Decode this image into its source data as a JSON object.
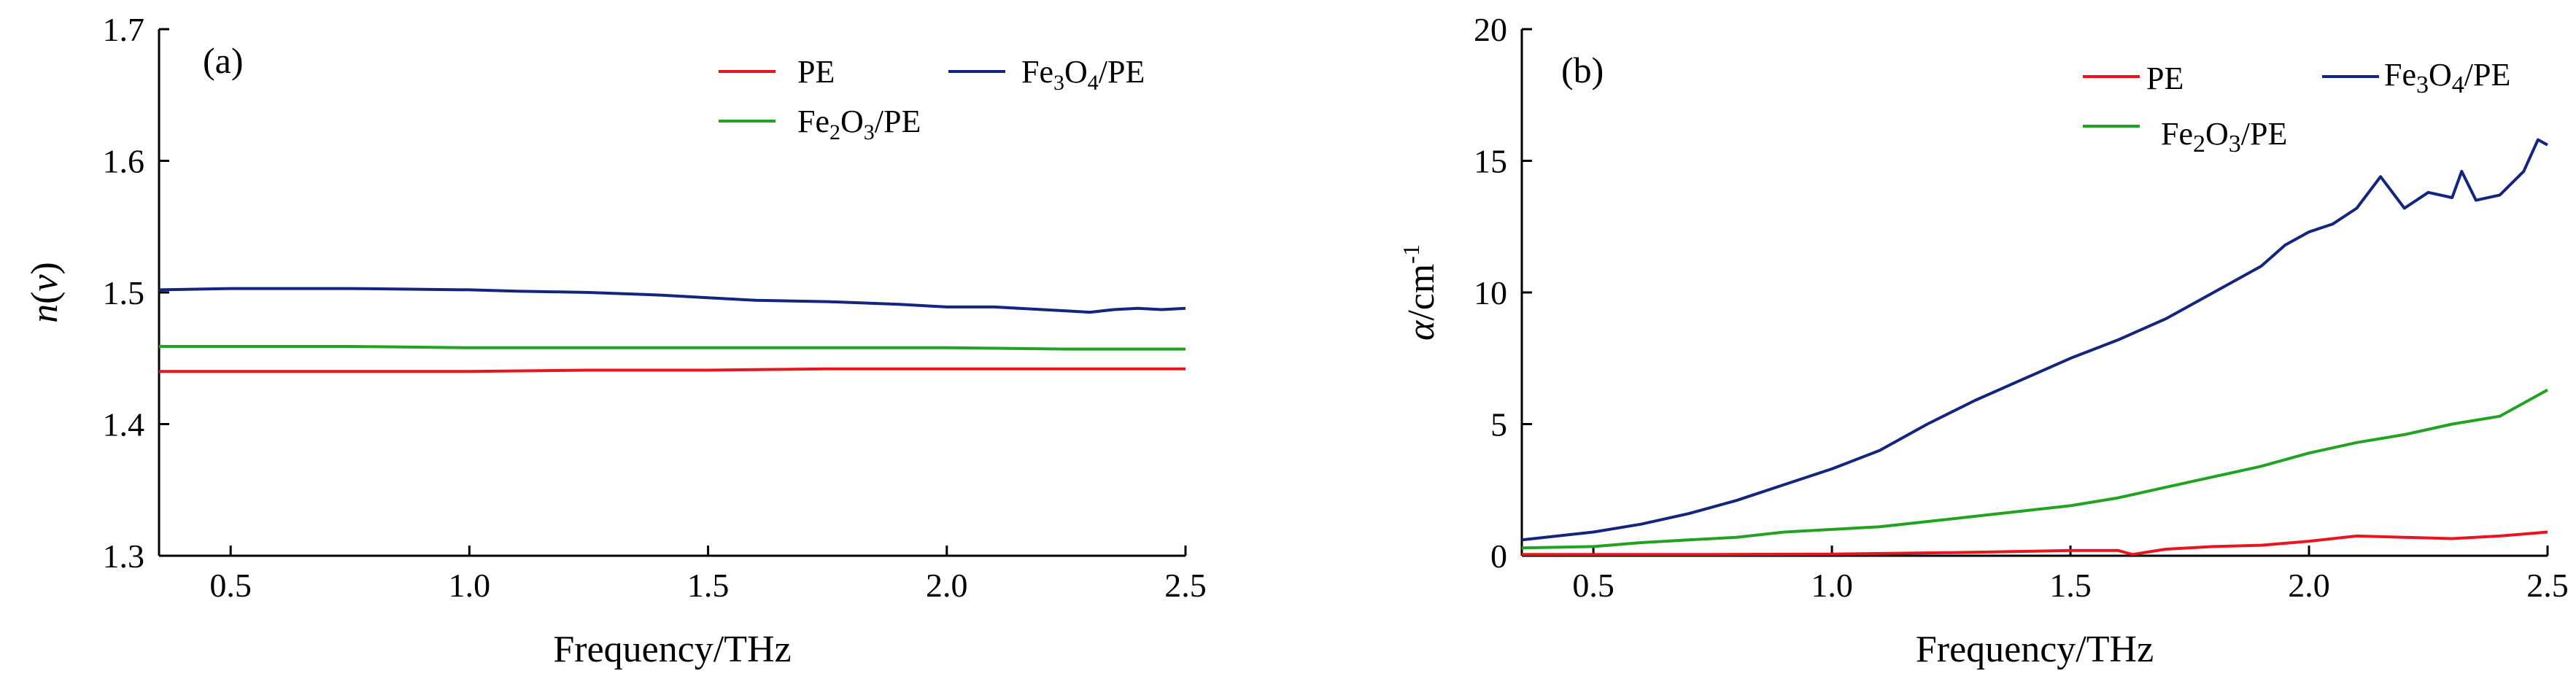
{
  "chart_data": [
    {
      "type": "line",
      "panel_label": "(a)",
      "xlabel": "Frequency/THz",
      "ylabel_main": "n",
      "ylabel_paren_open": "(",
      "ylabel_var": "ν",
      "ylabel_paren_close": ")",
      "xlim": [
        0.35,
        2.5
      ],
      "ylim": [
        1.3,
        1.7
      ],
      "xticks": [
        0.5,
        1.0,
        1.5,
        2.0,
        2.5
      ],
      "xtick_labels": [
        "0.5",
        "1.0",
        "1.5",
        "2.0",
        "2.5"
      ],
      "yticks": [
        1.3,
        1.4,
        1.5,
        1.6,
        1.7
      ],
      "ytick_labels": [
        "1.3",
        "1.4",
        "1.5",
        "1.6",
        "1.7"
      ],
      "legend_position": "top-right",
      "series": [
        {
          "name": "PE",
          "color": "#e8151e",
          "legend": {
            "parts": [
              {
                "t": "PE"
              }
            ]
          },
          "x": [
            0.35,
            0.5,
            0.75,
            1.0,
            1.25,
            1.5,
            1.75,
            2.0,
            2.25,
            2.5
          ],
          "y": [
            1.44,
            1.44,
            1.44,
            1.44,
            1.441,
            1.441,
            1.442,
            1.442,
            1.442,
            1.442
          ]
        },
        {
          "name": "Fe3O4/PE",
          "color": "#13257f",
          "legend": {
            "parts": [
              {
                "t": "Fe"
              },
              {
                "t": "3",
                "sub": true
              },
              {
                "t": "O"
              },
              {
                "t": "4",
                "sub": true
              },
              {
                "t": "/PE"
              }
            ]
          },
          "x": [
            0.35,
            0.5,
            0.75,
            1.0,
            1.1,
            1.25,
            1.4,
            1.5,
            1.6,
            1.75,
            1.9,
            2.0,
            2.1,
            2.2,
            2.25,
            2.3,
            2.35,
            2.4,
            2.45,
            2.5
          ],
          "y": [
            1.502,
            1.503,
            1.503,
            1.502,
            1.501,
            1.5,
            1.498,
            1.496,
            1.494,
            1.493,
            1.491,
            1.489,
            1.489,
            1.487,
            1.486,
            1.485,
            1.487,
            1.488,
            1.487,
            1.488
          ]
        },
        {
          "name": "Fe2O3/PE",
          "color": "#21a321",
          "legend": {
            "parts": [
              {
                "t": "Fe"
              },
              {
                "t": "2",
                "sub": true
              },
              {
                "t": "O"
              },
              {
                "t": "3",
                "sub": true
              },
              {
                "t": "/PE"
              }
            ]
          },
          "x": [
            0.35,
            0.5,
            0.75,
            1.0,
            1.25,
            1.5,
            1.75,
            2.0,
            2.25,
            2.5
          ],
          "y": [
            1.459,
            1.459,
            1.459,
            1.458,
            1.458,
            1.458,
            1.458,
            1.458,
            1.457,
            1.457
          ]
        }
      ]
    },
    {
      "type": "line",
      "panel_label": "(b)",
      "xlabel": "Frequency/THz",
      "ylabel_main": "α",
      "ylabel_unit": "/cm",
      "ylabel_sup": "-1",
      "xlim": [
        0.35,
        2.5
      ],
      "ylim": [
        0,
        20
      ],
      "xticks": [
        0.5,
        1.0,
        1.5,
        2.0,
        2.5
      ],
      "xtick_labels": [
        "0.5",
        "1.0",
        "1.5",
        "2.0",
        "2.5"
      ],
      "yticks": [
        0,
        5,
        10,
        15,
        20
      ],
      "ytick_labels": [
        "0",
        "5",
        "10",
        "15",
        "20"
      ],
      "legend_position": "top-right",
      "series": [
        {
          "name": "PE",
          "color": "#e8151e",
          "legend": {
            "parts": [
              {
                "t": "PE"
              }
            ]
          },
          "x": [
            0.35,
            0.5,
            0.75,
            1.0,
            1.25,
            1.5,
            1.6,
            1.63,
            1.7,
            1.8,
            1.9,
            2.0,
            2.1,
            2.2,
            2.3,
            2.4,
            2.5
          ],
          "y": [
            0.05,
            0.05,
            0.05,
            0.06,
            0.12,
            0.2,
            0.2,
            0.05,
            0.25,
            0.35,
            0.4,
            0.55,
            0.75,
            0.7,
            0.65,
            0.75,
            0.9
          ]
        },
        {
          "name": "Fe3O4/PE",
          "color": "#13257f",
          "legend": {
            "parts": [
              {
                "t": "Fe"
              },
              {
                "t": "3",
                "sub": true
              },
              {
                "t": "O"
              },
              {
                "t": "4",
                "sub": true
              },
              {
                "t": "/PE"
              }
            ]
          },
          "x": [
            0.35,
            0.5,
            0.6,
            0.7,
            0.8,
            0.9,
            1.0,
            1.1,
            1.2,
            1.3,
            1.4,
            1.5,
            1.6,
            1.7,
            1.8,
            1.9,
            1.95,
            2.0,
            2.05,
            2.1,
            2.15,
            2.2,
            2.25,
            2.3,
            2.32,
            2.35,
            2.4,
            2.45,
            2.48,
            2.5
          ],
          "y": [
            0.6,
            0.9,
            1.2,
            1.6,
            2.1,
            2.7,
            3.3,
            4.0,
            5.0,
            5.9,
            6.7,
            7.5,
            8.2,
            9.0,
            10.0,
            11.0,
            11.8,
            12.3,
            12.6,
            13.2,
            14.4,
            13.2,
            13.8,
            13.6,
            14.6,
            13.5,
            13.7,
            14.6,
            15.8,
            15.6
          ]
        },
        {
          "name": "Fe2O3/PE",
          "color": "#21a321",
          "legend": {
            "parts": [
              {
                "t": "Fe"
              },
              {
                "t": "2",
                "sub": true
              },
              {
                "t": "O"
              },
              {
                "t": "3",
                "sub": true
              },
              {
                "t": "/PE"
              }
            ]
          },
          "x": [
            0.35,
            0.5,
            0.6,
            0.7,
            0.8,
            0.9,
            1.0,
            1.1,
            1.2,
            1.3,
            1.4,
            1.5,
            1.6,
            1.7,
            1.8,
            1.9,
            2.0,
            2.1,
            2.2,
            2.3,
            2.4,
            2.5
          ],
          "y": [
            0.3,
            0.35,
            0.5,
            0.6,
            0.7,
            0.9,
            1.0,
            1.1,
            1.3,
            1.5,
            1.7,
            1.9,
            2.2,
            2.6,
            3.0,
            3.4,
            3.9,
            4.3,
            4.6,
            5.0,
            5.3,
            6.3
          ]
        }
      ]
    }
  ]
}
